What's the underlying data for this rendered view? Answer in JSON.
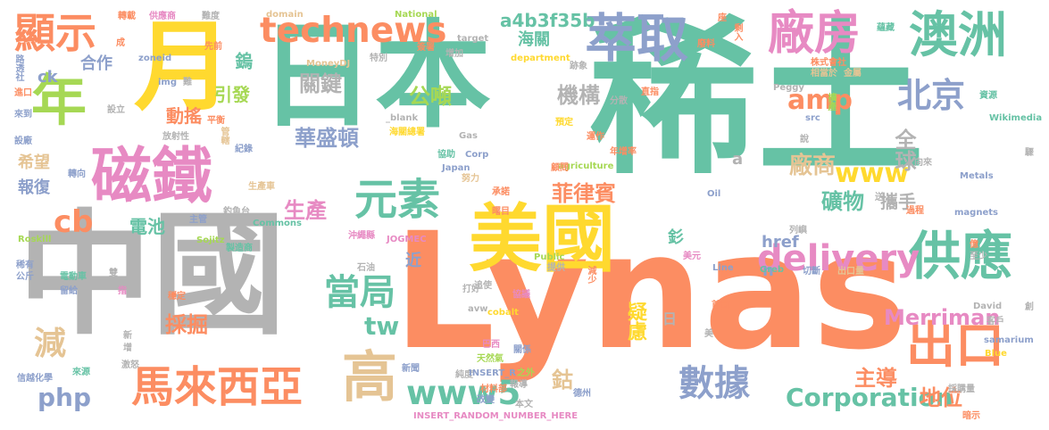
{
  "palette": {
    "green": "#66c2a5",
    "orange": "#fc8d62",
    "blue": "#8da0cb",
    "pink": "#e78ac3",
    "lime": "#a6d854",
    "yellow": "#ffd92f",
    "tan": "#e5c494",
    "gray": "#b3b3b3"
  },
  "words": [
    {
      "text": "日本",
      "color": "green"
    },
    {
      "text": "稀土",
      "color": "green"
    },
    {
      "text": "Lynas",
      "color": "orange"
    },
    {
      "text": "中國",
      "color": "gray"
    },
    {
      "text": "月",
      "color": "yellow"
    },
    {
      "text": "美國",
      "color": "yellow"
    },
    {
      "text": "磁鐵",
      "color": "pink"
    },
    {
      "text": "萃取",
      "color": "blue"
    },
    {
      "text": "澳洲",
      "color": "green"
    },
    {
      "text": "供應",
      "color": "green"
    },
    {
      "text": "廠房",
      "color": "pink"
    },
    {
      "text": "出口",
      "color": "orange"
    },
    {
      "text": "年",
      "color": "lime"
    },
    {
      "text": "顯示",
      "color": "orange"
    },
    {
      "text": "technews",
      "color": "orange"
    },
    {
      "text": "元素",
      "color": "green"
    },
    {
      "text": "馬來西亞",
      "color": "orange"
    },
    {
      "text": "高",
      "color": "tan"
    },
    {
      "text": "delivery",
      "color": "pink"
    },
    {
      "text": "數據",
      "color": "blue"
    },
    {
      "text": "北京",
      "color": "blue"
    },
    {
      "text": "www5",
      "color": "green"
    },
    {
      "text": "amp",
      "color": "orange"
    },
    {
      "text": "www",
      "color": "yellow"
    },
    {
      "text": "當局",
      "color": "green"
    },
    {
      "text": "Merriman",
      "color": "pink"
    },
    {
      "text": "Corporation",
      "color": "green"
    },
    {
      "text": "a4b3f35b",
      "color": "green"
    },
    {
      "text": "cb",
      "color": "orange"
    },
    {
      "text": "php",
      "color": "blue"
    },
    {
      "text": "減",
      "color": "tan"
    },
    {
      "text": "tw",
      "color": "green"
    },
    {
      "text": "生產",
      "color": "pink"
    },
    {
      "text": "菲律賓",
      "color": "orange"
    },
    {
      "text": "礦物",
      "color": "green"
    },
    {
      "text": "廠商",
      "color": "tan"
    },
    {
      "text": "全球",
      "color": "gray"
    },
    {
      "text": "機構",
      "color": "gray"
    },
    {
      "text": "公噸",
      "color": "lime"
    },
    {
      "text": "關鍵",
      "color": "gray"
    },
    {
      "text": "華盛頓",
      "color": "blue"
    },
    {
      "text": "採掘",
      "color": "orange"
    },
    {
      "text": "疑慮",
      "color": "yellow"
    },
    {
      "text": "地位",
      "color": "orange"
    },
    {
      "text": "主導",
      "color": "orange"
    },
    {
      "text": "鈷",
      "color": "tan"
    },
    {
      "text": "攜手",
      "color": "gray"
    },
    {
      "text": "電池",
      "color": "green"
    },
    {
      "text": "鎢",
      "color": "green"
    },
    {
      "text": "引發",
      "color": "lime"
    },
    {
      "text": "動搖",
      "color": "orange"
    },
    {
      "text": "合作",
      "color": "blue"
    },
    {
      "text": "ck",
      "color": "blue"
    },
    {
      "text": "希望",
      "color": "tan"
    },
    {
      "text": "報復",
      "color": "blue"
    },
    {
      "text": "href",
      "color": "blue"
    },
    {
      "text": "日",
      "color": "gray"
    },
    {
      "text": "n",
      "color": "blue"
    },
    {
      "text": "近",
      "color": "blue"
    },
    {
      "text": "釤",
      "color": "green"
    },
    {
      "text": "海關",
      "color": "green"
    },
    {
      "text": "a",
      "color": "gray"
    },
    {
      "text": "National",
      "color": "lime"
    },
    {
      "text": "domain",
      "color": "tan"
    },
    {
      "text": "轉載",
      "color": "orange"
    },
    {
      "text": "供應商",
      "color": "pink"
    },
    {
      "text": "難度",
      "color": "gray"
    },
    {
      "text": "target",
      "color": "gray"
    },
    {
      "text": "department",
      "color": "yellow"
    },
    {
      "text": "MoneyDJ",
      "color": "tan"
    },
    {
      "text": "zoneid",
      "color": "blue"
    },
    {
      "text": "img",
      "color": "blue"
    },
    {
      "text": "路透社",
      "color": "blue"
    },
    {
      "text": "成",
      "color": "orange"
    },
    {
      "text": "先前",
      "color": "orange"
    },
    {
      "text": "特別",
      "color": "gray"
    },
    {
      "text": "簽署",
      "color": "orange"
    },
    {
      "text": "增加",
      "color": "gray"
    },
    {
      "text": "跡象",
      "color": "gray"
    },
    {
      "text": "株式會社",
      "color": "orange"
    },
    {
      "text": "相當於",
      "color": "tan"
    },
    {
      "text": "金屬",
      "color": "tan"
    },
    {
      "text": "擴產",
      "color": "lime"
    },
    {
      "text": "_blank",
      "color": "gray"
    },
    {
      "text": "放射性",
      "color": "gray"
    },
    {
      "text": "平衡",
      "color": "orange"
    },
    {
      "text": "管轄",
      "color": "tan"
    },
    {
      "text": "紀錄",
      "color": "blue"
    },
    {
      "text": "生產車",
      "color": "tan"
    },
    {
      "text": "主管",
      "color": "blue"
    },
    {
      "text": "釣魚台",
      "color": "gray"
    },
    {
      "text": "Commons",
      "color": "green"
    },
    {
      "text": "製造商",
      "color": "green"
    },
    {
      "text": "Sojitz",
      "color": "lime"
    },
    {
      "text": "沖繩縣",
      "color": "pink"
    },
    {
      "text": "JOGMEC",
      "color": "pink"
    },
    {
      "text": "石油",
      "color": "gray"
    },
    {
      "text": "Roskill",
      "color": "lime"
    },
    {
      "text": "稀有",
      "color": "blue"
    },
    {
      "text": "公斤",
      "color": "blue"
    },
    {
      "text": "電動車",
      "color": "green"
    },
    {
      "text": "留給",
      "color": "blue"
    },
    {
      "text": "指",
      "color": "pink"
    },
    {
      "text": "穩定",
      "color": "orange"
    },
    {
      "text": "激怒",
      "color": "gray"
    },
    {
      "text": "來源",
      "color": "green"
    },
    {
      "text": "信越化學",
      "color": "blue"
    },
    {
      "text": "新聞",
      "color": "blue"
    },
    {
      "text": "純度",
      "color": "gray"
    },
    {
      "text": "天然氣",
      "color": "lime"
    },
    {
      "text": "巴西",
      "color": "pink"
    },
    {
      "text": "關係",
      "color": "blue"
    },
    {
      "text": "INSERT_R",
      "color": "blue"
    },
    {
      "text": "材料部",
      "color": "orange"
    },
    {
      "text": "改變",
      "color": "blue"
    },
    {
      "text": "報導",
      "color": "gray"
    },
    {
      "text": "之外",
      "color": "lime"
    },
    {
      "text": "本文",
      "color": "gray"
    },
    {
      "text": "德州",
      "color": "blue"
    },
    {
      "text": "INSERT_RANDOM_NUMBER_HERE",
      "color": "pink"
    },
    {
      "text": "採購量",
      "color": "gray"
    },
    {
      "text": "暗示",
      "color": "orange"
    },
    {
      "text": "Blue",
      "color": "yellow"
    },
    {
      "text": "samarium",
      "color": "blue"
    },
    {
      "text": "客戶",
      "color": "gray"
    },
    {
      "text": "David",
      "color": "gray"
    },
    {
      "text": "首圖",
      "color": "orange"
    },
    {
      "text": "cobalt",
      "color": "yellow"
    },
    {
      "text": "avw",
      "color": "gray"
    },
    {
      "text": "打好",
      "color": "gray"
    },
    {
      "text": "協議",
      "color": "pink"
    },
    {
      "text": "Greb",
      "color": "green"
    },
    {
      "text": "切斷",
      "color": "blue"
    },
    {
      "text": "出口量",
      "color": "tan"
    },
    {
      "text": "Line",
      "color": "blue"
    },
    {
      "text": "Public",
      "color": "lime"
    },
    {
      "text": "提供",
      "color": "gray"
    },
    {
      "text": "減少",
      "color": "orange"
    },
    {
      "text": "Oil",
      "color": "blue"
    },
    {
      "text": "美元",
      "color": "pink"
    },
    {
      "text": "列嶼",
      "color": "gray"
    },
    {
      "text": "過程",
      "color": "orange"
    },
    {
      "text": "magnets",
      "color": "blue"
    },
    {
      "text": "Metals",
      "color": "blue"
    },
    {
      "text": "Wikimedia",
      "color": "green"
    },
    {
      "text": "資源",
      "color": "green"
    },
    {
      "text": "Peggy",
      "color": "gray"
    },
    {
      "text": "src",
      "color": "blue"
    },
    {
      "text": "Japan",
      "color": "blue"
    },
    {
      "text": "agriculture",
      "color": "lime"
    },
    {
      "text": "年增率",
      "color": "orange"
    },
    {
      "text": "Gas",
      "color": "gray"
    },
    {
      "text": "Corp",
      "color": "blue"
    },
    {
      "text": "協助",
      "color": "green"
    },
    {
      "text": "海關總署",
      "color": "yellow"
    },
    {
      "text": "預定",
      "color": "yellow"
    },
    {
      "text": "運作",
      "color": "orange"
    },
    {
      "text": "顧問",
      "color": "orange"
    },
    {
      "text": "承諾",
      "color": "orange"
    },
    {
      "text": "努力",
      "color": "tan"
    },
    {
      "text": "曙目",
      "color": "orange"
    },
    {
      "text": "直指",
      "color": "orange"
    },
    {
      "text": "分散",
      "color": "gray"
    },
    {
      "text": "廢料",
      "color": "orange"
    },
    {
      "text": "座",
      "color": "orange"
    },
    {
      "text": "剩入",
      "color": "orange"
    },
    {
      "text": "蘊藏",
      "color": "green"
    },
    {
      "text": "進口",
      "color": "orange"
    },
    {
      "text": "來到",
      "color": "blue"
    },
    {
      "text": "設立",
      "color": "gray"
    },
    {
      "text": "設廠",
      "color": "blue"
    },
    {
      "text": "轉向",
      "color": "blue"
    },
    {
      "text": "說",
      "color": "gray"
    },
    {
      "text": "向來",
      "color": "gray"
    },
    {
      "text": "驟",
      "color": "gray"
    },
    {
      "text": "送",
      "color": "gray"
    },
    {
      "text": "億",
      "color": "orange"
    },
    {
      "text": "至少",
      "color": "gray"
    },
    {
      "text": "美",
      "color": "gray"
    },
    {
      "text": "創",
      "color": "gray"
    },
    {
      "text": "新",
      "color": "gray"
    },
    {
      "text": "增",
      "color": "gray"
    },
    {
      "text": "雙",
      "color": "gray"
    },
    {
      "text": "難",
      "color": "gray"
    },
    {
      "text": "追使",
      "color": "gray"
    }
  ]
}
